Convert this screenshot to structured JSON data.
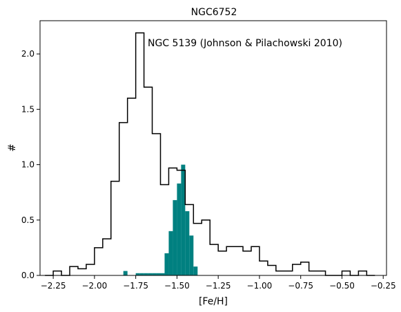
{
  "chart_data": {
    "type": "histogram",
    "title": "NGC6752",
    "xlabel": "[Fe/H]",
    "ylabel": "#",
    "xlim": [
      -2.33,
      -0.23
    ],
    "ylim": [
      0.0,
      2.3
    ],
    "xticks": [
      -2.25,
      -2.0,
      -1.75,
      -1.5,
      -1.25,
      -1.0,
      -0.75,
      -0.5,
      -0.25
    ],
    "xtick_labels": [
      "−2.25",
      "−2.00",
      "−1.75",
      "−1.50",
      "−1.25",
      "−1.00",
      "−0.75",
      "−0.50",
      "−0.25"
    ],
    "yticks": [
      0.0,
      0.5,
      1.0,
      1.5,
      2.0
    ],
    "ytick_labels": [
      "0.0",
      "0.5",
      "1.0",
      "1.5",
      "2.0"
    ],
    "annotation": "NGC 5139 (Johnson & Pilachowski 2010)",
    "grid": false,
    "series": [
      {
        "name": "NGC 5139 (Johnson & Pilachowski 2010)",
        "kind": "step",
        "color": "#000000",
        "bin_width": 0.05,
        "bin_left_edges": [
          -2.3,
          -2.25,
          -2.2,
          -2.15,
          -2.1,
          -2.05,
          -2.0,
          -1.95,
          -1.9,
          -1.85,
          -1.8,
          -1.75,
          -1.7,
          -1.65,
          -1.6,
          -1.55,
          -1.5,
          -1.45,
          -1.4,
          -1.35,
          -1.3,
          -1.25,
          -1.2,
          -1.15,
          -1.1,
          -1.05,
          -1.0,
          -0.95,
          -0.9,
          -0.85,
          -0.8,
          -0.75,
          -0.7,
          -0.65,
          -0.6,
          -0.55,
          -0.5,
          -0.45,
          -0.4,
          -0.35
        ],
        "values": [
          0.0,
          0.04,
          0.0,
          0.08,
          0.06,
          0.1,
          0.25,
          0.33,
          0.85,
          1.38,
          1.6,
          2.19,
          1.7,
          1.28,
          0.82,
          0.97,
          0.95,
          0.64,
          0.47,
          0.5,
          0.28,
          0.22,
          0.26,
          0.26,
          0.22,
          0.26,
          0.13,
          0.09,
          0.04,
          0.04,
          0.1,
          0.12,
          0.04,
          0.04,
          0.0,
          0.0,
          0.04,
          0.0,
          0.04,
          0.0
        ]
      },
      {
        "name": "NGC6752",
        "kind": "filled",
        "color": "#008080",
        "bin_width": 0.025,
        "bin_left_edges": [
          -1.825,
          -1.8,
          -1.775,
          -1.75,
          -1.725,
          -1.7,
          -1.675,
          -1.65,
          -1.625,
          -1.6,
          -1.575,
          -1.55,
          -1.525,
          -1.5,
          -1.475,
          -1.45,
          -1.425,
          -1.4,
          -1.375
        ],
        "values": [
          0.04,
          0.0,
          0.0,
          0.02,
          0.02,
          0.02,
          0.02,
          0.02,
          0.02,
          0.02,
          0.2,
          0.4,
          0.68,
          0.83,
          1.0,
          0.58,
          0.36,
          0.08,
          0.0
        ]
      }
    ]
  }
}
